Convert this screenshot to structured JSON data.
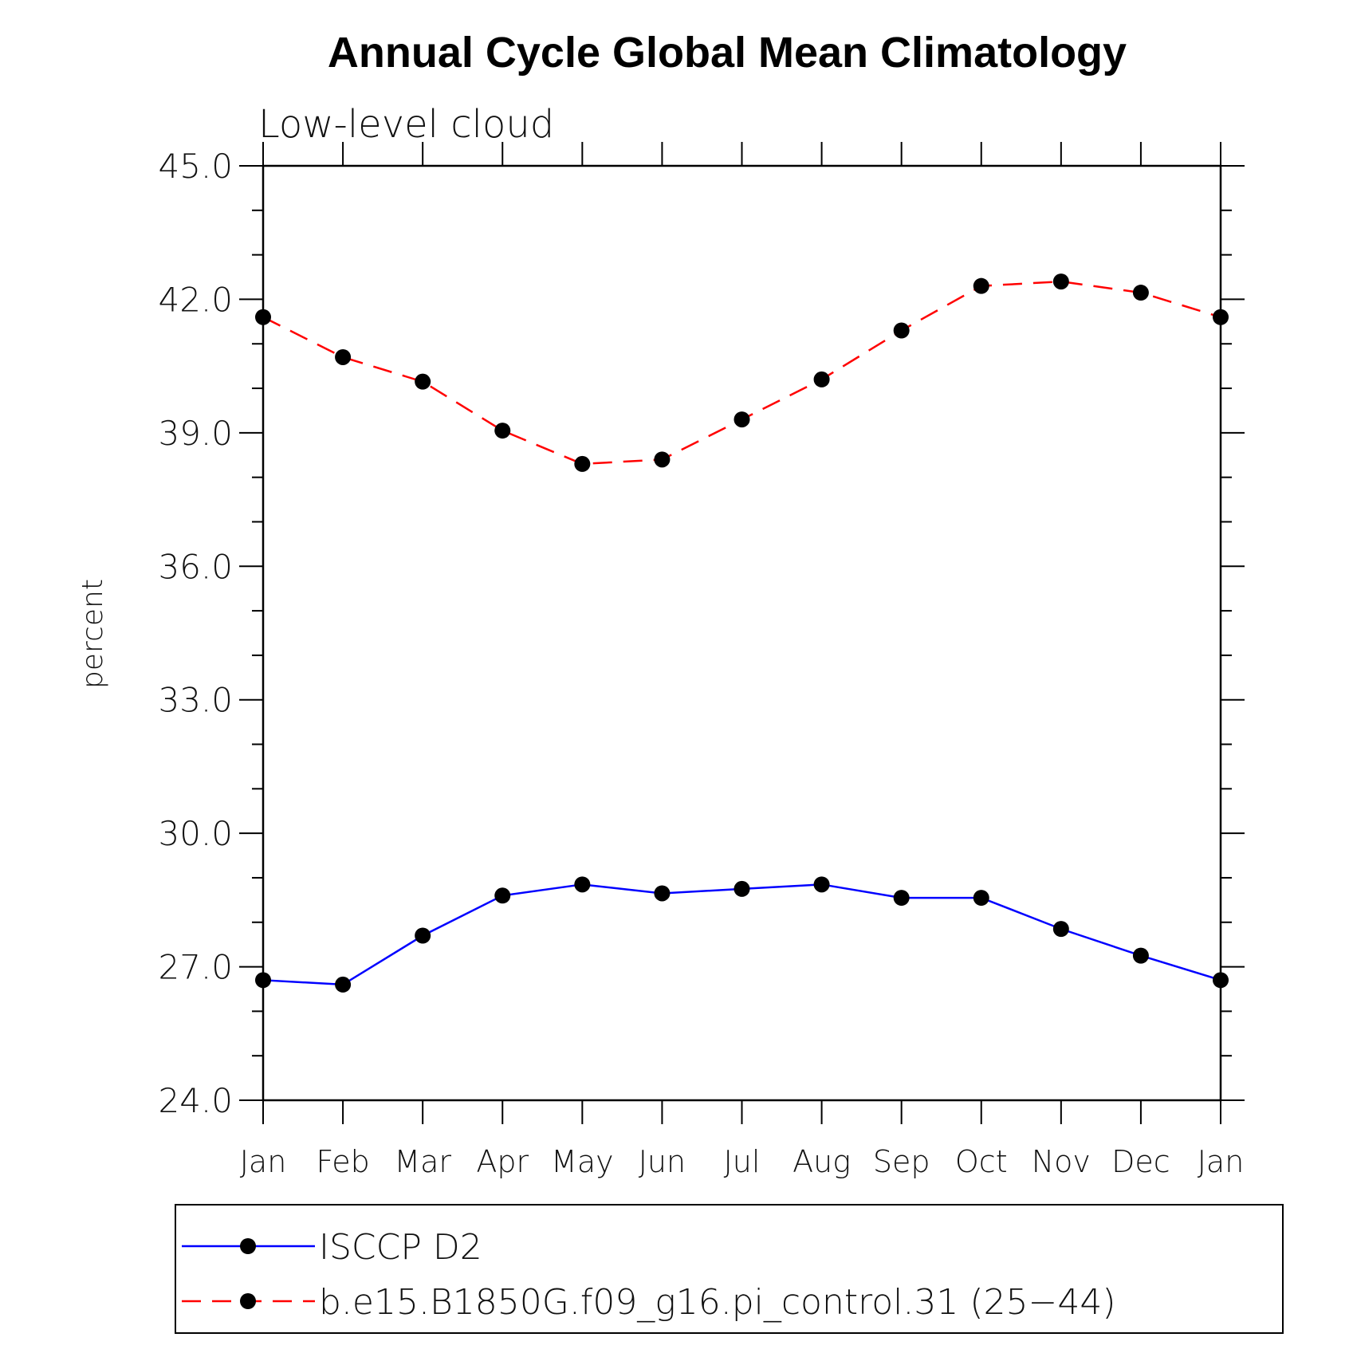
{
  "chart_data": {
    "type": "line",
    "title": "Annual Cycle Global Mean Climatology",
    "subtitle": "Low-level cloud",
    "xlabel": "",
    "ylabel": "percent",
    "categories": [
      "Jan",
      "Feb",
      "Mar",
      "Apr",
      "May",
      "Jun",
      "Jul",
      "Aug",
      "Sep",
      "Oct",
      "Nov",
      "Dec",
      "Jan"
    ],
    "ylim": [
      24.0,
      45.0
    ],
    "yticks": [
      "24.0",
      "27.0",
      "30.0",
      "33.0",
      "36.0",
      "39.0",
      "42.0",
      "45.0"
    ],
    "grid": false,
    "legend_position": "bottom",
    "series": [
      {
        "name": "ISCCP D2",
        "color": "#0000ff",
        "line_style": "solid",
        "marker": "filled-circle",
        "values": [
          26.7,
          26.6,
          27.7,
          28.6,
          28.85,
          28.65,
          28.75,
          28.85,
          28.55,
          28.55,
          27.85,
          27.25,
          26.7
        ]
      },
      {
        "name": "b.e15.B1850G.f09_g16.pi_control.31 (25−44)",
        "color": "#ff0000",
        "line_style": "dashed",
        "marker": "filled-circle",
        "values": [
          41.6,
          40.7,
          40.15,
          39.05,
          38.3,
          38.4,
          39.3,
          40.2,
          41.3,
          42.3,
          42.4,
          42.15,
          41.6
        ]
      }
    ]
  }
}
